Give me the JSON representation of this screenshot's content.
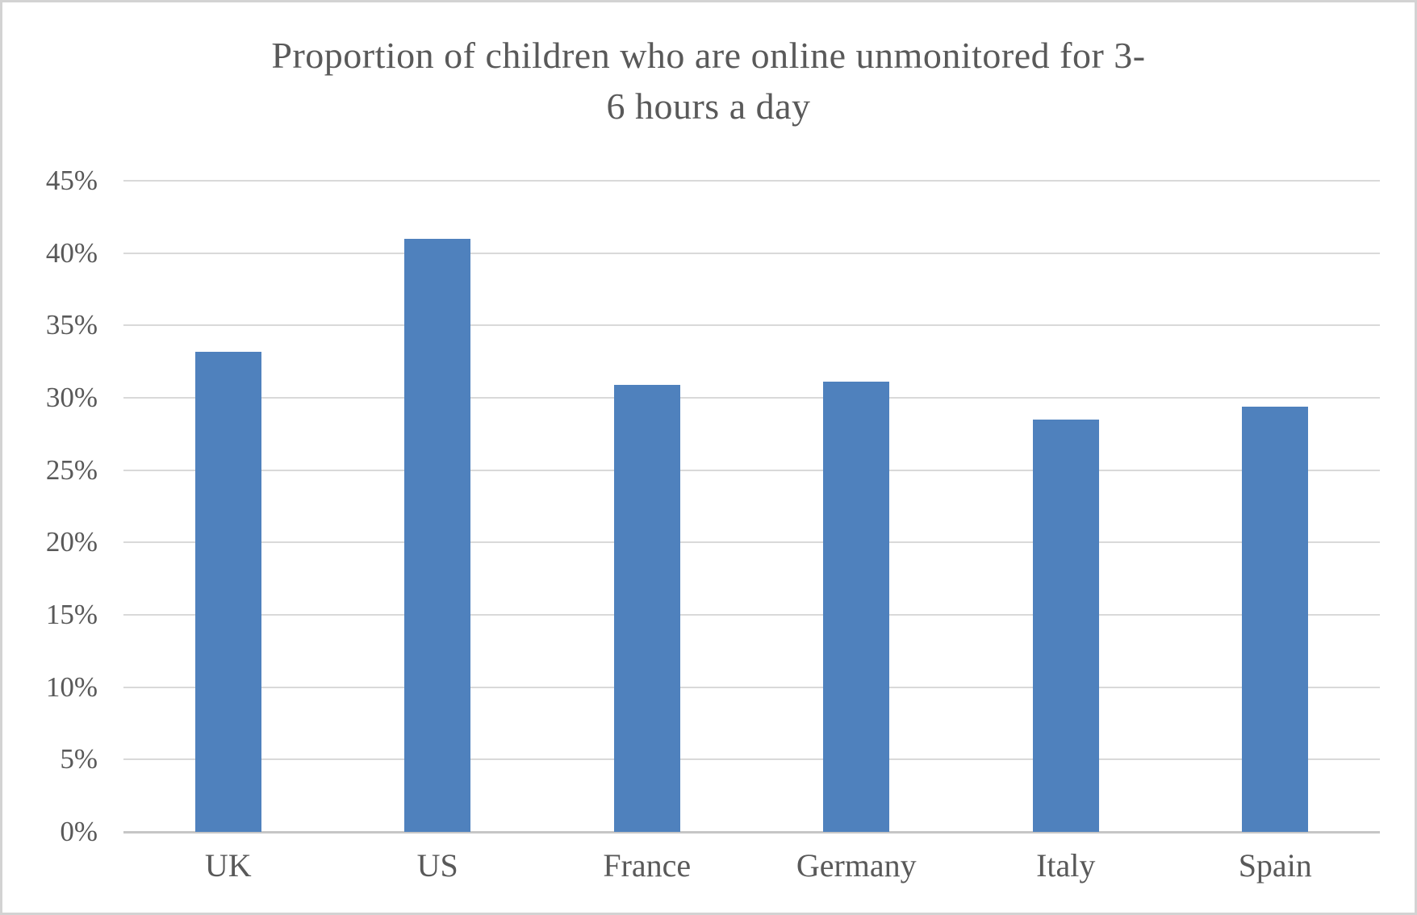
{
  "chart_data": {
    "type": "bar",
    "title": "Proportion of children who are online unmonitored for 3-6 hours a day",
    "title_lines": [
      "Proportion of children who are online unmonitored for 3-",
      "6 hours a day"
    ],
    "categories": [
      "UK",
      "US",
      "France",
      "Germany",
      "Italy",
      "Spain"
    ],
    "values": [
      33.2,
      41.0,
      30.9,
      31.1,
      28.5,
      29.4
    ],
    "series": [
      {
        "name": "Proportion of children",
        "values": [
          33.2,
          41.0,
          30.9,
          31.1,
          28.5,
          29.4
        ]
      }
    ],
    "xlabel": "",
    "ylabel": "",
    "ylim": [
      0,
      45
    ],
    "ytick_step": 5,
    "ytick_labels": [
      "0%",
      "5%",
      "10%",
      "15%",
      "20%",
      "25%",
      "30%",
      "35%",
      "40%",
      "45%"
    ],
    "value_suffix": "%",
    "grid": true,
    "legend": false
  },
  "style": {
    "bar_color": "#4F81BD",
    "gridline_color": "#D9D9D9",
    "axis_line_color": "#C6C6C6",
    "text_color": "#595959",
    "background_color": "#FFFFFF",
    "border_color": "#D3D3D3"
  }
}
